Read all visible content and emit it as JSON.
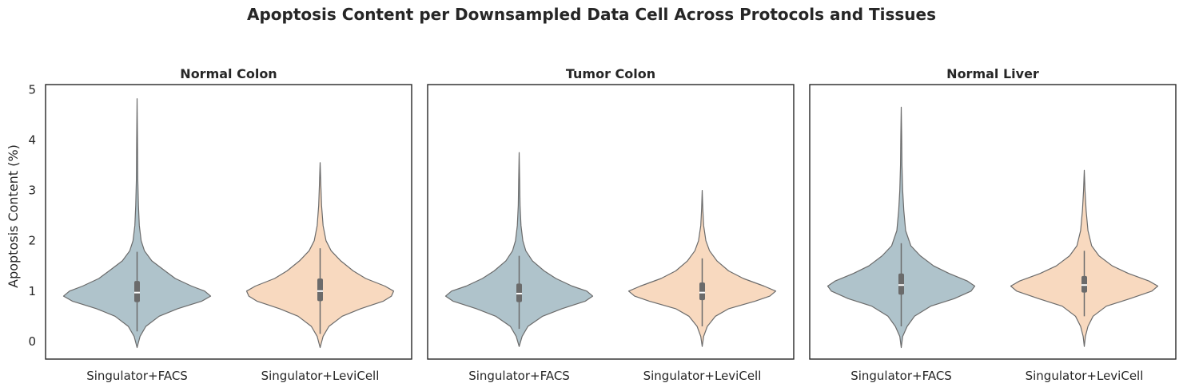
{
  "title": "Apoptosis Content per Downsampled Data Cell Across Protocols and Tissues",
  "ylabel": "Apoptosis Content (%)",
  "colors": {
    "Singulator+FACS": "#afc3cb",
    "Singulator+LeviCell": "#f8d9bf"
  },
  "chart_data": [
    {
      "type": "violin",
      "title": "Normal Colon",
      "categories": [
        "Singulator+FACS",
        "Singulator+LeviCell"
      ],
      "ylim": [
        -0.35,
        5.1
      ],
      "yticks": [
        0,
        1,
        2,
        3,
        4,
        5
      ],
      "grid": false,
      "series": [
        {
          "category": "Singulator+FACS",
          "min": -0.12,
          "max": 4.82,
          "q1": 0.78,
          "median": 0.97,
          "q3": 1.2,
          "whisker_low": 0.2,
          "whisker_high": 1.78,
          "density_y": [
            -0.12,
            0.1,
            0.3,
            0.5,
            0.65,
            0.8,
            0.9,
            1.0,
            1.1,
            1.25,
            1.4,
            1.6,
            1.8,
            2.0,
            2.3,
            2.7,
            3.2,
            4.0,
            4.82
          ],
          "density_w": [
            0.0,
            0.04,
            0.12,
            0.3,
            0.55,
            0.88,
            1.0,
            0.92,
            0.74,
            0.52,
            0.38,
            0.2,
            0.1,
            0.055,
            0.03,
            0.018,
            0.01,
            0.005,
            0.0
          ]
        },
        {
          "category": "Singulator+LeviCell",
          "min": -0.12,
          "max": 3.55,
          "q1": 0.8,
          "median": 1.0,
          "q3": 1.25,
          "whisker_low": 0.15,
          "whisker_high": 1.85,
          "density_y": [
            -0.12,
            0.1,
            0.3,
            0.5,
            0.65,
            0.8,
            0.9,
            1.0,
            1.1,
            1.25,
            1.4,
            1.6,
            1.8,
            2.0,
            2.3,
            2.7,
            3.1,
            3.55
          ],
          "density_w": [
            0.0,
            0.04,
            0.12,
            0.3,
            0.55,
            0.86,
            0.97,
            1.0,
            0.88,
            0.62,
            0.45,
            0.28,
            0.15,
            0.08,
            0.04,
            0.02,
            0.01,
            0.0
          ]
        }
      ]
    },
    {
      "type": "violin",
      "title": "Tumor Colon",
      "categories": [
        "Singulator+FACS",
        "Singulator+LeviCell"
      ],
      "ylim": [
        -0.35,
        5.1
      ],
      "yticks": [
        0,
        1,
        2,
        3,
        4,
        5
      ],
      "grid": false,
      "series": [
        {
          "category": "Singulator+FACS",
          "min": -0.1,
          "max": 3.75,
          "q1": 0.78,
          "median": 0.95,
          "q3": 1.15,
          "whisker_low": 0.25,
          "whisker_high": 1.7,
          "density_y": [
            -0.1,
            0.1,
            0.3,
            0.5,
            0.65,
            0.8,
            0.9,
            1.0,
            1.1,
            1.25,
            1.4,
            1.6,
            1.8,
            2.0,
            2.3,
            2.7,
            3.2,
            3.75
          ],
          "density_w": [
            0.0,
            0.04,
            0.12,
            0.32,
            0.58,
            0.9,
            1.0,
            0.92,
            0.72,
            0.5,
            0.34,
            0.18,
            0.09,
            0.05,
            0.025,
            0.012,
            0.006,
            0.0
          ]
        },
        {
          "category": "Singulator+LeviCell",
          "min": -0.1,
          "max": 3.0,
          "q1": 0.82,
          "median": 0.97,
          "q3": 1.17,
          "whisker_low": 0.3,
          "whisker_high": 1.65,
          "density_y": [
            -0.1,
            0.1,
            0.3,
            0.5,
            0.65,
            0.8,
            0.9,
            1.0,
            1.1,
            1.25,
            1.4,
            1.6,
            1.8,
            2.0,
            2.3,
            2.65,
            3.0
          ],
          "density_w": [
            0.0,
            0.02,
            0.07,
            0.18,
            0.36,
            0.72,
            0.92,
            1.0,
            0.84,
            0.56,
            0.36,
            0.2,
            0.1,
            0.05,
            0.02,
            0.008,
            0.0
          ]
        }
      ]
    },
    {
      "type": "violin",
      "title": "Normal Liver",
      "categories": [
        "Singulator+FACS",
        "Singulator+LeviCell"
      ],
      "ylim": [
        -0.35,
        5.1
      ],
      "yticks": [
        0,
        1,
        2,
        3,
        4,
        5
      ],
      "grid": false,
      "series": [
        {
          "category": "Singulator+FACS",
          "min": -0.12,
          "max": 4.65,
          "q1": 0.93,
          "median": 1.12,
          "q3": 1.35,
          "whisker_low": 0.3,
          "whisker_high": 1.95,
          "density_y": [
            -0.12,
            0.1,
            0.3,
            0.5,
            0.7,
            0.85,
            1.0,
            1.1,
            1.2,
            1.35,
            1.5,
            1.7,
            1.9,
            2.2,
            2.6,
            3.0,
            3.5,
            4.1,
            4.65
          ],
          "density_w": [
            0.0,
            0.02,
            0.08,
            0.18,
            0.4,
            0.72,
            0.95,
            1.0,
            0.9,
            0.65,
            0.44,
            0.26,
            0.13,
            0.06,
            0.035,
            0.02,
            0.01,
            0.005,
            0.0
          ]
        },
        {
          "category": "Singulator+LeviCell",
          "min": -0.1,
          "max": 3.4,
          "q1": 0.97,
          "median": 1.12,
          "q3": 1.3,
          "whisker_low": 0.5,
          "whisker_high": 1.8,
          "density_y": [
            -0.1,
            0.1,
            0.3,
            0.5,
            0.7,
            0.85,
            1.0,
            1.1,
            1.2,
            1.35,
            1.5,
            1.7,
            1.9,
            2.2,
            2.6,
            3.0,
            3.4
          ],
          "density_w": [
            0.0,
            0.015,
            0.05,
            0.12,
            0.3,
            0.62,
            0.92,
            1.0,
            0.88,
            0.6,
            0.38,
            0.2,
            0.1,
            0.05,
            0.025,
            0.01,
            0.0
          ]
        }
      ]
    }
  ]
}
